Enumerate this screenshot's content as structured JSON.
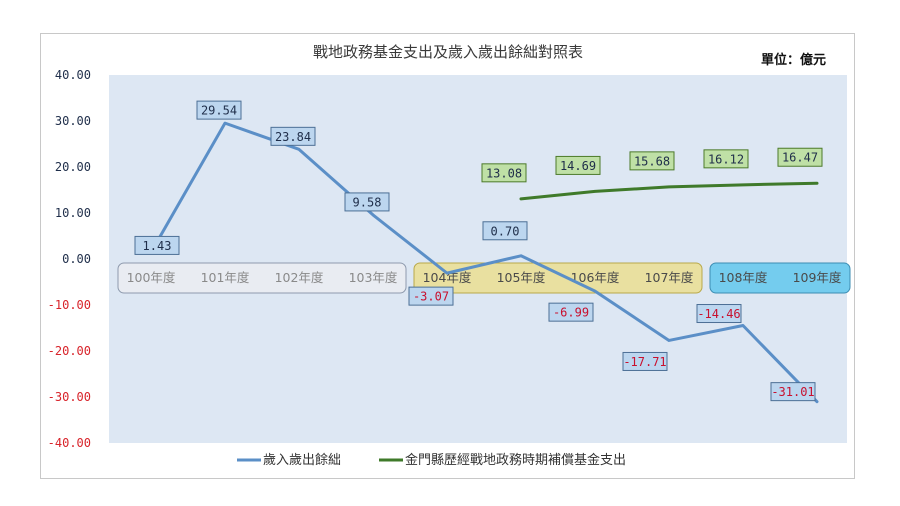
{
  "chart_data": {
    "type": "line",
    "title": "戰地政務基金支出及歲入歲出餘絀對照表",
    "unit": "單位：億元",
    "categories": [
      "100年度",
      "101年度",
      "102年度",
      "103年度",
      "104年度",
      "105年度",
      "106年度",
      "107年度",
      "108年度",
      "109年度"
    ],
    "ylim": [
      -40,
      40
    ],
    "yticks": [
      "40.00",
      "30.00",
      "20.00",
      "10.00",
      "0.00",
      "-10.00",
      "-20.00",
      "-30.00",
      "-40.00"
    ],
    "grid": false,
    "legend_position": "bottom",
    "series": [
      {
        "name": "歲入歲出餘絀",
        "color": "#5b8fc7",
        "values": [
          1.43,
          29.54,
          23.84,
          9.58,
          -3.07,
          0.7,
          -6.99,
          -17.71,
          -14.46,
          -31.01
        ],
        "labels": [
          "1.43",
          "29.54",
          "23.84",
          "9.58",
          "-3.07",
          "0.70",
          "-6.99",
          "-17.71",
          "-14.46",
          "-31.01"
        ]
      },
      {
        "name": "金門縣歷經戰地政務時期補償基金支出",
        "color": "#3f7a2a",
        "values": [
          null,
          null,
          null,
          null,
          null,
          13.08,
          14.69,
          15.68,
          16.12,
          16.47
        ],
        "labels": [
          null,
          null,
          null,
          null,
          null,
          "13.08",
          "14.69",
          "15.68",
          "16.12",
          "16.47"
        ]
      }
    ],
    "periods": [
      {
        "from": 0,
        "to": 3,
        "fill": "#e9ecf2",
        "stroke": "#8e9aad"
      },
      {
        "from": 4,
        "to": 7,
        "fill": "#e9e0a0",
        "stroke": "#b9a94a"
      },
      {
        "from": 8,
        "to": 9,
        "fill": "#74ccee",
        "stroke": "#3c8db3"
      }
    ],
    "colors": {
      "plot_bg": "#dde7f3",
      "positive_tick": "#1f2e4a",
      "negative_tick": "#d8232a",
      "blue_label_bg": "#bcd6ef",
      "green_label_bg": "#bfe0a6",
      "negative_label_text": "#c8102e",
      "positive_label_text": "#1f2e4a"
    }
  }
}
